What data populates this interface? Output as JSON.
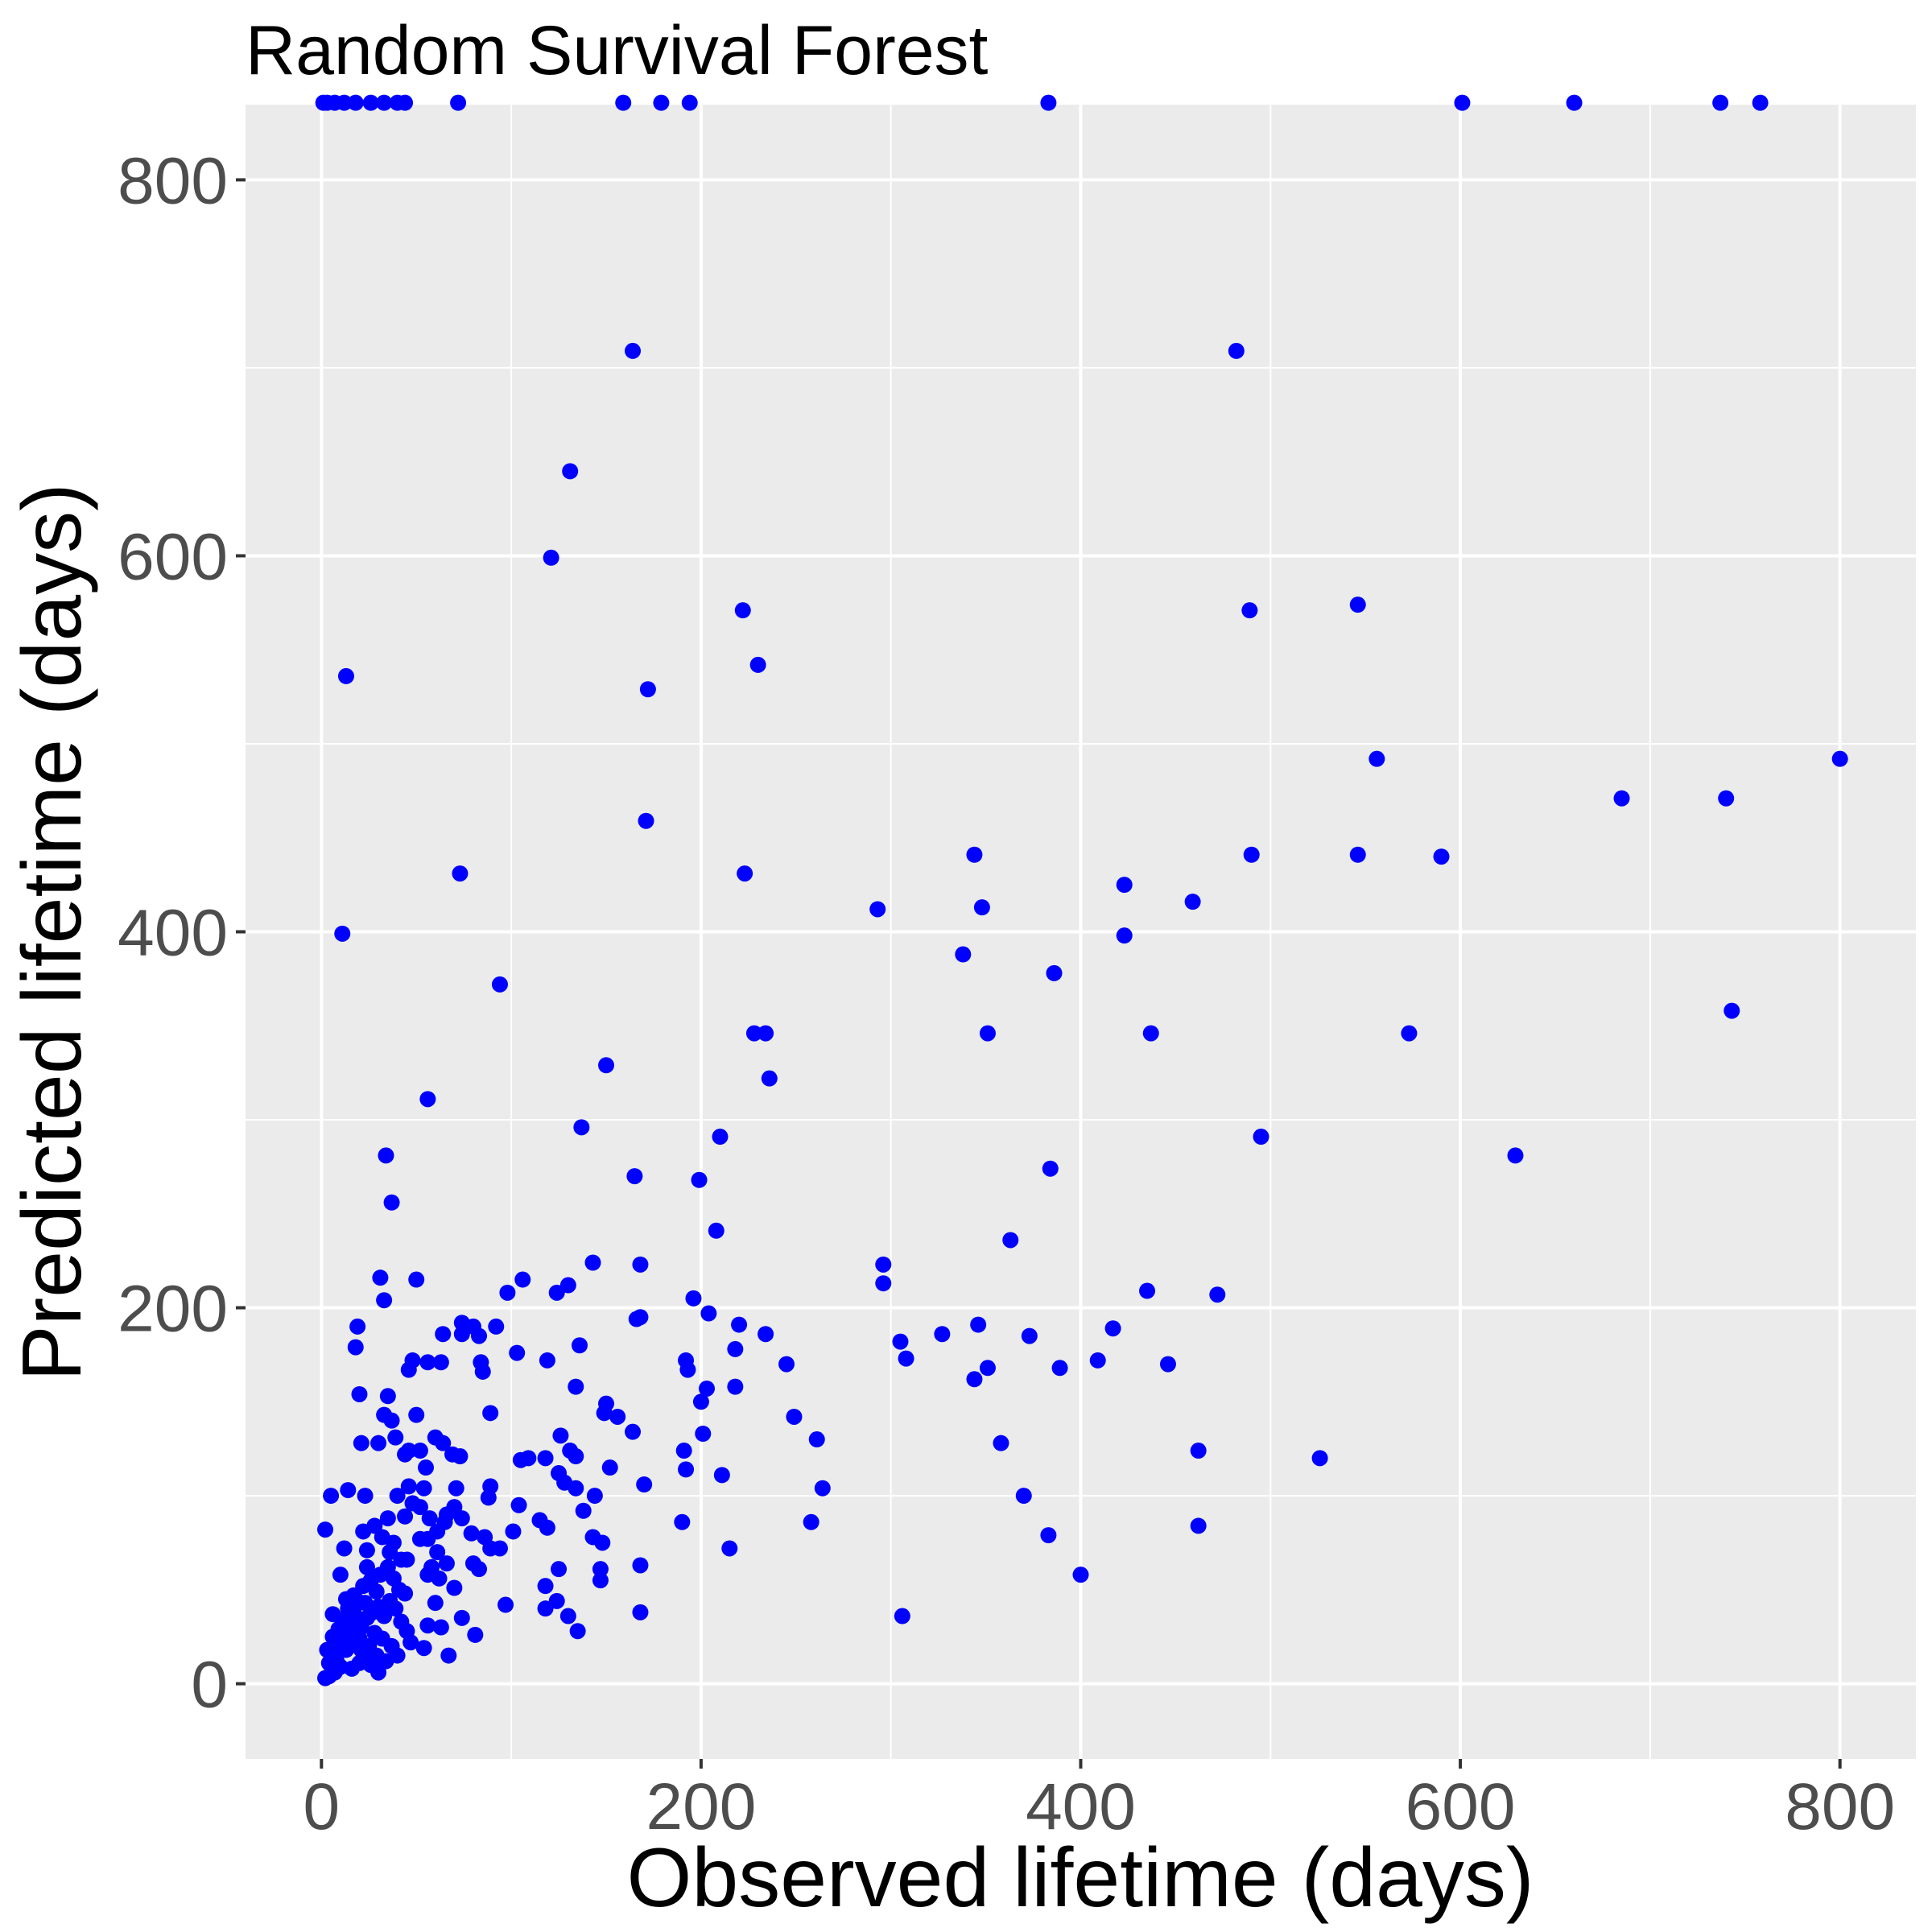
{
  "chart_data": {
    "type": "scatter",
    "title": "Random Survival Forest",
    "xlabel": "Observed lifetime (days)",
    "ylabel": "Predicted lifetime (days)",
    "xlim": [
      -40,
      840
    ],
    "ylim": [
      -40,
      840
    ],
    "x_ticks": [
      0,
      200,
      400,
      600,
      800
    ],
    "y_ticks": [
      0,
      200,
      400,
      600,
      800
    ],
    "x_tick_labels": [
      "0",
      "200",
      "400",
      "600",
      "800"
    ],
    "y_tick_labels": [
      "0",
      "200",
      "400",
      "600",
      "800"
    ],
    "grid": true,
    "legend": "none",
    "colors": {
      "panel": "#ebebeb",
      "grid": "#ffffff",
      "point": "#0000ff",
      "tick": "#333333"
    },
    "series": [
      {
        "points": [
          [
            1,
            841
          ],
          [
            3,
            841
          ],
          [
            7,
            841
          ],
          [
            12,
            841
          ],
          [
            18,
            841
          ],
          [
            26,
            841
          ],
          [
            33,
            841
          ],
          [
            40,
            841
          ],
          [
            44,
            841
          ],
          [
            72,
            841
          ],
          [
            159,
            841
          ],
          [
            179,
            841
          ],
          [
            194,
            841
          ],
          [
            383,
            841
          ],
          [
            601,
            841
          ],
          [
            660,
            841
          ],
          [
            737,
            841
          ],
          [
            758,
            841
          ],
          [
            164,
            709
          ],
          [
            482,
            709
          ],
          [
            131,
            645
          ],
          [
            121,
            599
          ],
          [
            222,
            571
          ],
          [
            489,
            571
          ],
          [
            546,
            574
          ],
          [
            230,
            542
          ],
          [
            13,
            536
          ],
          [
            172,
            529
          ],
          [
            556,
            492
          ],
          [
            800,
            492
          ],
          [
            685,
            471
          ],
          [
            740,
            471
          ],
          [
            171,
            459
          ],
          [
            73,
            431
          ],
          [
            223,
            431
          ],
          [
            344,
            441
          ],
          [
            490,
            441
          ],
          [
            546,
            441
          ],
          [
            590,
            440
          ],
          [
            423,
            425
          ],
          [
            459,
            416
          ],
          [
            348,
            413
          ],
          [
            293,
            412
          ],
          [
            11,
            399
          ],
          [
            423,
            398
          ],
          [
            338,
            388
          ],
          [
            386,
            378
          ],
          [
            94,
            372
          ],
          [
            743,
            358
          ],
          [
            228,
            346
          ],
          [
            234,
            346
          ],
          [
            351,
            346
          ],
          [
            437,
            346
          ],
          [
            573,
            346
          ],
          [
            150,
            329
          ],
          [
            236,
            322
          ],
          [
            56,
            311
          ],
          [
            137,
            296
          ],
          [
            210,
            291
          ],
          [
            495,
            291
          ],
          [
            34,
            281
          ],
          [
            629,
            281
          ],
          [
            384,
            274
          ],
          [
            165,
            270
          ],
          [
            199,
            268
          ],
          [
            37,
            256
          ],
          [
            208,
            241
          ],
          [
            363,
            236
          ],
          [
            143,
            224
          ],
          [
            168,
            223
          ],
          [
            296,
            223
          ],
          [
            31,
            216
          ],
          [
            50,
            215
          ],
          [
            106,
            215
          ],
          [
            296,
            213
          ],
          [
            130,
            212
          ],
          [
            124,
            208
          ],
          [
            98,
            208
          ],
          [
            435,
            209
          ],
          [
            472,
            207
          ],
          [
            196,
            205
          ],
          [
            33,
            204
          ],
          [
            204,
            197
          ],
          [
            166,
            194
          ],
          [
            168,
            195
          ],
          [
            19,
            190
          ],
          [
            74,
            192
          ],
          [
            80,
            190
          ],
          [
            92,
            190
          ],
          [
            220,
            191
          ],
          [
            346,
            191
          ],
          [
            417,
            189
          ],
          [
            64,
            186
          ],
          [
            74,
            186
          ],
          [
            83,
            185
          ],
          [
            234,
            186
          ],
          [
            327,
            186
          ],
          [
            373,
            185
          ],
          [
            305,
            182
          ],
          [
            136,
            180
          ],
          [
            18,
            179
          ],
          [
            218,
            178
          ],
          [
            103,
            176
          ],
          [
            119,
            172
          ],
          [
            308,
            173
          ],
          [
            409,
            172
          ],
          [
            48,
            172
          ],
          [
            56,
            171
          ],
          [
            63,
            171
          ],
          [
            84,
            171
          ],
          [
            192,
            172
          ],
          [
            245,
            170
          ],
          [
            446,
            170
          ],
          [
            351,
            168
          ],
          [
            389,
            168
          ],
          [
            46,
            167
          ],
          [
            85,
            166
          ],
          [
            193,
            167
          ],
          [
            218,
            158
          ],
          [
            134,
            158
          ],
          [
            203,
            157
          ],
          [
            344,
            162
          ],
          [
            20,
            154
          ],
          [
            35,
            153
          ],
          [
            150,
            149
          ],
          [
            200,
            150
          ],
          [
            149,
            144
          ],
          [
            156,
            142
          ],
          [
            249,
            142
          ],
          [
            33,
            143
          ],
          [
            37,
            140
          ],
          [
            50,
            143
          ],
          [
            89,
            144
          ],
          [
            30,
            128
          ],
          [
            21,
            128
          ],
          [
            39,
            131
          ],
          [
            60,
            131
          ],
          [
            64,
            128
          ],
          [
            69,
            122
          ],
          [
            73,
            121
          ],
          [
            164,
            134
          ],
          [
            201,
            133
          ],
          [
            126,
            132
          ],
          [
            261,
            130
          ],
          [
            358,
            128
          ],
          [
            46,
            124
          ],
          [
            52,
            124
          ],
          [
            131,
            124
          ],
          [
            134,
            121
          ],
          [
            191,
            124
          ],
          [
            44,
            122
          ],
          [
            109,
            120
          ],
          [
            105,
            119
          ],
          [
            118,
            120
          ],
          [
            462,
            124
          ],
          [
            55,
            115
          ],
          [
            152,
            115
          ],
          [
            128,
            107
          ],
          [
            211,
            111
          ],
          [
            526,
            120
          ],
          [
            125,
            112
          ],
          [
            192,
            114
          ],
          [
            46,
            105
          ],
          [
            54,
            104
          ],
          [
            89,
            105
          ],
          [
            170,
            106
          ],
          [
            264,
            104
          ],
          [
            134,
            104
          ],
          [
            144,
            100
          ],
          [
            14,
            103
          ],
          [
            23,
            100
          ],
          [
            5,
            100
          ],
          [
            370,
            100
          ],
          [
            88,
            99
          ],
          [
            104,
            95
          ],
          [
            138,
            92
          ],
          [
            70,
            94
          ],
          [
            52,
            94
          ],
          [
            44,
            89
          ],
          [
            35,
            88
          ],
          [
            65,
            86
          ],
          [
            74,
            88
          ],
          [
            115,
            87
          ],
          [
            190,
            86
          ],
          [
            258,
            86
          ],
          [
            462,
            84
          ],
          [
            22,
            81
          ],
          [
            79,
            80
          ],
          [
            86,
            78
          ],
          [
            383,
            79
          ],
          [
            143,
            78
          ],
          [
            119,
            83
          ],
          [
            101,
            81
          ],
          [
            12,
            72
          ],
          [
            38,
            75
          ],
          [
            56,
            77
          ],
          [
            89,
            72
          ],
          [
            94,
            72
          ],
          [
            148,
            75
          ],
          [
            215,
            72
          ],
          [
            24,
            71
          ],
          [
            61,
            70
          ],
          [
            42,
            66
          ],
          [
            66,
            64
          ],
          [
            80,
            64
          ],
          [
            168,
            63
          ],
          [
            147,
            61
          ],
          [
            83,
            61
          ],
          [
            125,
            61
          ],
          [
            56,
            58
          ],
          [
            400,
            58
          ],
          [
            147,
            55
          ],
          [
            118,
            52
          ],
          [
            70,
            51
          ],
          [
            97,
            42
          ],
          [
            118,
            40
          ],
          [
            124,
            44
          ],
          [
            130,
            36
          ],
          [
            168,
            38
          ],
          [
            306,
            36
          ],
          [
            44,
            48
          ],
          [
            60,
            43
          ],
          [
            74,
            35
          ],
          [
            81,
            26
          ],
          [
            67,
            15
          ],
          [
            54,
            19
          ],
          [
            56,
            31
          ],
          [
            63,
            30
          ],
          [
            47,
            22
          ],
          [
            40,
            15
          ],
          [
            25,
            14
          ],
          [
            20,
            11
          ],
          [
            16,
            8
          ],
          [
            10,
            9
          ],
          [
            7,
            6
          ],
          [
            4,
            4
          ],
          [
            2,
            3
          ],
          [
            5,
            16
          ],
          [
            3,
            18
          ],
          [
            8,
            22
          ],
          [
            12,
            25
          ],
          [
            15,
            28
          ],
          [
            18,
            32
          ],
          [
            21,
            30
          ],
          [
            24,
            35
          ],
          [
            27,
            38
          ],
          [
            30,
            41
          ],
          [
            33,
            36
          ],
          [
            36,
            44
          ],
          [
            39,
            40
          ],
          [
            42,
            33
          ],
          [
            45,
            28
          ],
          [
            14,
            40
          ],
          [
            11,
            34
          ],
          [
            9,
            29
          ],
          [
            6,
            37
          ],
          [
            17,
            47
          ],
          [
            22,
            52
          ],
          [
            26,
            55
          ],
          [
            29,
            49
          ],
          [
            31,
            58
          ],
          [
            35,
            62
          ],
          [
            38,
            56
          ],
          [
            41,
            50
          ],
          [
            19,
            44
          ],
          [
            23,
            43
          ],
          [
            28,
            27
          ],
          [
            32,
            24
          ],
          [
            37,
            20
          ],
          [
            8,
            12
          ],
          [
            13,
            18
          ],
          [
            16,
            21
          ],
          [
            20,
            24
          ],
          [
            25,
            20
          ],
          [
            29,
            15
          ],
          [
            34,
            12
          ],
          [
            2,
            82
          ],
          [
            135,
            28
          ],
          [
            40,
            100
          ],
          [
            48,
            96
          ],
          [
            57,
            88
          ],
          [
            61,
            81
          ],
          [
            66,
            90
          ],
          [
            71,
            104
          ],
          [
            52,
            77
          ],
          [
            45,
            66
          ],
          [
            58,
            62
          ],
          [
            62,
            56
          ],
          [
            36,
            70
          ],
          [
            32,
            78
          ],
          [
            28,
            84
          ],
          [
            24,
            62
          ],
          [
            10,
            58
          ],
          [
            13,
            45
          ],
          [
            17,
            38
          ],
          [
            21,
            18
          ],
          [
            26,
            10
          ],
          [
            30,
            6
          ],
          [
            4,
            11
          ],
          [
            6,
            25
          ]
        ]
      }
    ]
  }
}
